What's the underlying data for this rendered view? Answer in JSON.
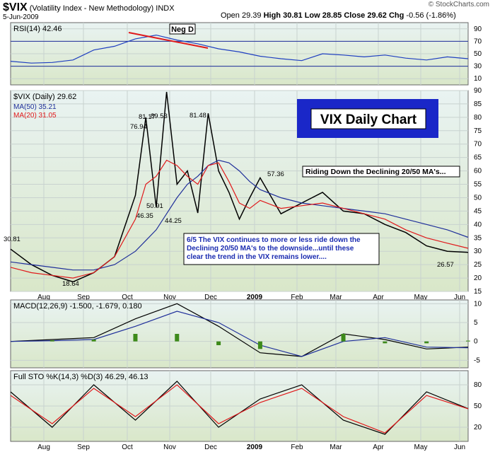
{
  "header": {
    "symbol": "$VIX",
    "name": "(Volatility Index - New Methodology)",
    "exchange": "INDX",
    "date": "5-Jun-2009",
    "open_label": "Open",
    "open": "29.39",
    "high_label": "High",
    "high": "30.81",
    "low_label": "Low",
    "low": "28.85",
    "close_label": "Close",
    "close": "29.62",
    "chg_label": "Chg",
    "chg": "-0.56 (-1.86%)",
    "watermark": "© StockCharts.com"
  },
  "colors": {
    "panel_bg_top": "#e8f2f0",
    "panel_bg_bottom": "#dbe8cc",
    "price_line": "#000000",
    "ma50": "#1f2f9a",
    "ma20": "#e0191b",
    "rsi": "#1f3fc0",
    "macd_hist": "#3d8a1a",
    "annotation_text": "#1a2bb0",
    "title_box": "#1a27c8"
  },
  "chart_data": [
    {
      "type": "line",
      "panel": "rsi",
      "legend": "RSI(14) 42.46",
      "ylim": [
        0,
        100
      ],
      "y_ticks": [
        10,
        30,
        50,
        70,
        90
      ],
      "reference_lines": [
        30,
        70
      ],
      "x_months": [
        "Aug",
        "Sep",
        "Oct",
        "Nov",
        "Dec",
        "2009",
        "Feb",
        "Mar",
        "Apr",
        "May",
        "Jun"
      ],
      "x": [
        0,
        10,
        20,
        30,
        40,
        50,
        60,
        70,
        80,
        90,
        100,
        110,
        120,
        130,
        140,
        150,
        160,
        170,
        180,
        190,
        200,
        210,
        220
      ],
      "values": [
        38,
        35,
        36,
        40,
        56,
        62,
        74,
        80,
        72,
        66,
        58,
        53,
        46,
        42,
        39,
        50,
        48,
        45,
        48,
        43,
        40,
        45,
        42
      ],
      "annotation": "Neg D"
    },
    {
      "type": "line",
      "panel": "price",
      "legend": "$VIX (Daily) 29.62",
      "ylim": [
        15,
        90
      ],
      "y_ticks": [
        15,
        20,
        25,
        30,
        35,
        40,
        45,
        50,
        55,
        60,
        65,
        70,
        75,
        80,
        85,
        90
      ],
      "x_months": [
        "Aug",
        "Sep",
        "Oct",
        "Nov",
        "Dec",
        "2009",
        "Feb",
        "Mar",
        "Apr",
        "May",
        "Jun"
      ],
      "x": [
        0,
        10,
        20,
        30,
        40,
        50,
        60,
        65,
        70,
        75,
        80,
        85,
        90,
        95,
        100,
        105,
        110,
        115,
        120,
        130,
        140,
        150,
        160,
        170,
        180,
        190,
        200,
        210,
        220
      ],
      "series": [
        {
          "name": "$VIX (Daily) 29.62",
          "values": [
            30.8,
            25,
            21,
            18.6,
            22,
            28,
            50.9,
            80,
            46.4,
            89.5,
            55,
            60,
            44.3,
            81.5,
            60,
            52,
            42,
            50,
            57.4,
            44,
            48,
            52,
            45,
            44,
            40,
            37,
            32,
            30,
            29.6
          ]
        },
        {
          "name": "MA(50) 35.21",
          "values": [
            26,
            25,
            24,
            23,
            23,
            25,
            30,
            34,
            38,
            44,
            50,
            55,
            58,
            62,
            64,
            63,
            60,
            56,
            53,
            50,
            48,
            47,
            46,
            45,
            44,
            42,
            40,
            38,
            35.2
          ]
        },
        {
          "name": "MA(20) 31.05",
          "values": [
            24,
            22,
            21,
            20,
            22,
            28,
            42,
            55,
            58,
            64,
            62,
            58,
            55,
            62,
            63,
            56,
            48,
            46,
            49,
            46,
            47,
            48,
            46,
            44,
            42,
            38,
            35,
            33,
            31.1
          ]
        }
      ],
      "labels": [
        "30.81",
        "18.64",
        "76.94",
        "81.17",
        "89.53",
        "50.91",
        "46.35",
        "44.25",
        "81.48",
        "57.36",
        "26.57"
      ],
      "title_box": "VIX Daily Chart",
      "note1": "Riding Down the Declining 20/50 MA's...",
      "note2": "6/5 The VIX continues to more or less ride down the Declining 20/50 MA's to the downside...until these clear the trend in the VIX remains lower...."
    },
    {
      "type": "line",
      "panel": "macd",
      "legend": "MACD(12,26,9) -1.500, -1.679, 0.180",
      "ylim": [
        -7,
        11
      ],
      "y_ticks": [
        -5,
        0,
        5,
        10
      ],
      "x_months": [
        "Aug",
        "Sep",
        "Oct",
        "Nov",
        "Dec",
        "2009",
        "Feb",
        "Mar",
        "Apr",
        "May",
        "Jun"
      ],
      "x": [
        0,
        20,
        40,
        60,
        80,
        100,
        120,
        140,
        160,
        180,
        200,
        220
      ],
      "series": [
        {
          "name": "-1.500",
          "values": [
            0,
            0.5,
            1,
            6,
            10,
            4,
            -3,
            -4,
            2,
            0.5,
            -2,
            -1.5
          ]
        },
        {
          "name": "-1.679",
          "values": [
            0,
            0.2,
            0.5,
            4,
            8,
            5,
            -1,
            -4,
            0,
            1,
            -1.5,
            -1.7
          ]
        },
        {
          "name": "0.180",
          "values": [
            0,
            0.3,
            0.5,
            2,
            2,
            -1,
            -2,
            0,
            2,
            -0.5,
            -0.5,
            0.2
          ]
        }
      ]
    },
    {
      "type": "line",
      "panel": "stochastic",
      "legend": "Full STO %K(14,3) %D(3) 46.29, 46.13",
      "ylim": [
        0,
        100
      ],
      "y_ticks": [
        20,
        50,
        80
      ],
      "x_months": [
        "Aug",
        "Sep",
        "Oct",
        "Nov",
        "Dec",
        "2009",
        "Feb",
        "Mar",
        "Apr",
        "May",
        "Jun"
      ],
      "x": [
        0,
        20,
        40,
        60,
        80,
        100,
        120,
        140,
        160,
        180,
        200,
        220
      ],
      "series": [
        {
          "name": "46.29",
          "values": [
            70,
            20,
            80,
            30,
            85,
            20,
            60,
            80,
            30,
            10,
            70,
            46.3
          ]
        },
        {
          "name": "46.13",
          "values": [
            65,
            25,
            75,
            35,
            80,
            25,
            55,
            75,
            35,
            12,
            65,
            46.1
          ]
        }
      ]
    }
  ]
}
